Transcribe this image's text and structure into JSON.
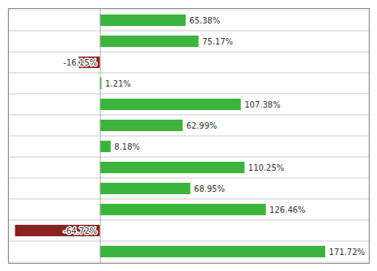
{
  "chart_data": {
    "type": "bar",
    "orientation": "horizontal",
    "categories": [
      null,
      null,
      null,
      null,
      null,
      null,
      null,
      null,
      null,
      null,
      null,
      null
    ],
    "values": [
      65.38,
      75.17,
      -16.15,
      1.21,
      107.38,
      62.99,
      8.18,
      110.25,
      68.95,
      126.46,
      -64.72,
      171.72
    ],
    "value_labels": [
      "65.38%",
      "75.17%",
      "-16.15%",
      "1.21%",
      "107.38%",
      "62.99%",
      "8.18%",
      "110.25%",
      "68.95%",
      "126.46%",
      "-64.72%",
      "171.72%"
    ],
    "colors": [
      "#3cb33c",
      "#3cb33c",
      "#8b2020",
      "#3cb33c",
      "#3cb33c",
      "#3cb33c",
      "#3cb33c",
      "#3cb33c",
      "#3cb33c",
      "#3cb33c",
      "#8b2020",
      "#3cb33c"
    ],
    "xlim": [
      -70,
      205
    ],
    "xticks": [],
    "tick_labels": false,
    "grid": true,
    "data_labels": true
  }
}
